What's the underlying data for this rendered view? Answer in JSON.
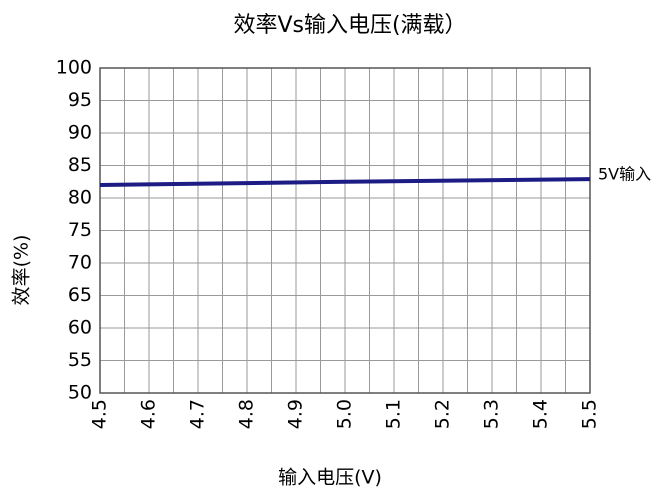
{
  "chart_data": {
    "type": "line",
    "title": "效率Vs输入电压(满载）",
    "x_label": "输入电压(V)",
    "y_label": "效率(%)",
    "x": [
      4.5,
      5.0,
      5.5
    ],
    "series": [
      {
        "name": "5V输入",
        "color": "#1c1c84",
        "values": [
          82.0,
          82.5,
          82.9
        ]
      }
    ],
    "xlim": [
      4.5,
      5.5
    ],
    "xticks": [
      4.5,
      4.6,
      4.7,
      4.8,
      4.9,
      {
        "value": 5.0,
        "label": "5.0"
      },
      5.1,
      5.2,
      5.3,
      5.4,
      5.5
    ],
    "minor_xticks": [
      4.55,
      4.65,
      4.75,
      4.85,
      4.95,
      5.05,
      5.15,
      5.25,
      5.35,
      5.45
    ],
    "ylim": [
      50,
      100
    ],
    "yticks": [
      50,
      55,
      60,
      65,
      70,
      75,
      80,
      85,
      90,
      95,
      100
    ],
    "grid": true
  }
}
